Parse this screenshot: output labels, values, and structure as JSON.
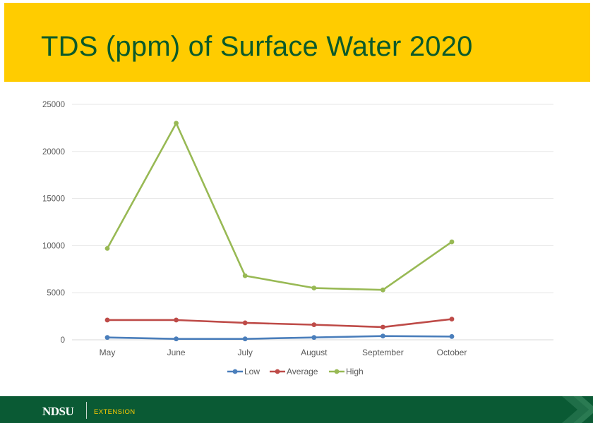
{
  "slide": {
    "title": "TDS (ppm) of Surface Water 2020",
    "footer": {
      "brand": "NDSU",
      "sub": "EXTENSION"
    }
  },
  "colors": {
    "accent": "#ffcc00",
    "brand_green": "#0a5a34",
    "title_text": "#0b5a2a"
  },
  "chart_data": {
    "type": "line",
    "title": "TDS (ppm) of Surface Water 2020",
    "xlabel": "",
    "ylabel": "",
    "categories": [
      "May",
      "June",
      "July",
      "August",
      "September",
      "October"
    ],
    "ylim": [
      0,
      25000
    ],
    "yticks": [
      0,
      5000,
      10000,
      15000,
      20000,
      25000
    ],
    "grid": true,
    "legend": "bottom",
    "series": [
      {
        "name": "Low",
        "color": "#4a7ebb",
        "values": [
          250,
          100,
          100,
          250,
          400,
          350
        ]
      },
      {
        "name": "Average",
        "color": "#be4b48",
        "values": [
          2100,
          2100,
          1800,
          1600,
          1350,
          2200
        ]
      },
      {
        "name": "High",
        "color": "#98b954",
        "values": [
          9700,
          23000,
          6800,
          5500,
          5300,
          10400
        ]
      }
    ]
  }
}
